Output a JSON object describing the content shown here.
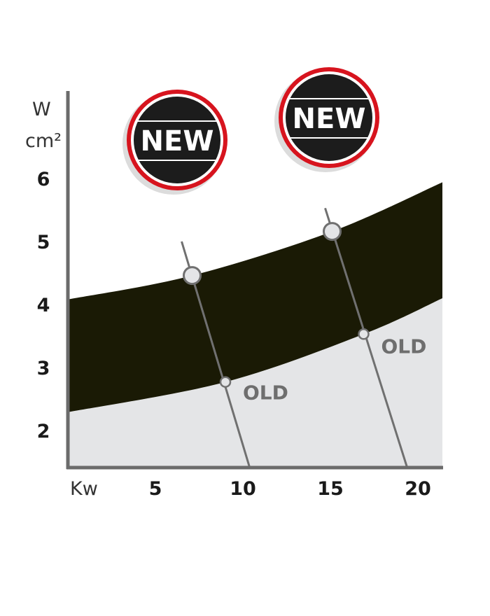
{
  "chart_data": {
    "type": "area",
    "xlabel": "Kw",
    "ylabel_line1": "W",
    "ylabel_line2": "cm²",
    "xlim": [
      0,
      21.4
    ],
    "ylim": [
      1.4,
      7.4
    ],
    "grid": false,
    "x_ticks": [
      5,
      10,
      15,
      20
    ],
    "y_ticks": [
      2,
      3,
      4,
      5,
      6
    ],
    "band": {
      "color": "#1a1a05",
      "upper": [
        [
          0,
          4.08
        ],
        [
          7.1,
          4.46
        ],
        [
          15.1,
          5.16
        ],
        [
          21.4,
          5.94
        ]
      ],
      "lower": [
        [
          0,
          2.29
        ],
        [
          9.0,
          2.77
        ],
        [
          16.9,
          3.53
        ],
        [
          21.4,
          4.1
        ]
      ]
    },
    "lower_area_color": "#e4e5e7",
    "line_color": "#707070",
    "lines": [
      {
        "from": [
          6.5,
          5.0
        ],
        "to": [
          10.4,
          1.4
        ],
        "new_point": [
          7.1,
          4.46
        ],
        "old_point": [
          9.0,
          2.77
        ],
        "old_label": "OLD"
      },
      {
        "from": [
          14.7,
          5.53
        ],
        "to": [
          19.4,
          1.4
        ],
        "new_point": [
          15.1,
          5.16
        ],
        "old_point": [
          16.9,
          3.53
        ],
        "old_label": "OLD"
      }
    ],
    "badges": [
      {
        "text": "NEW",
        "ring_color": "#d7141e",
        "fill_color": "#1c1c1c"
      },
      {
        "text": "NEW",
        "ring_color": "#d7141e",
        "fill_color": "#1c1c1c"
      }
    ]
  }
}
